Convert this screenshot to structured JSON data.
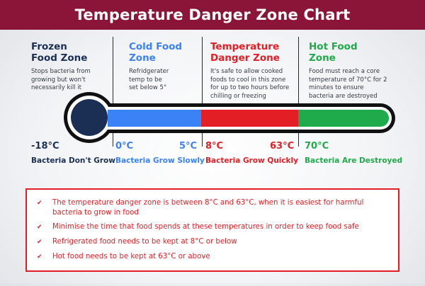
{
  "header": {
    "title": "Temperature Danger Zone Chart"
  },
  "colors": {
    "header_bg": "#8a1538",
    "frozen": "#1b2f55",
    "cold": "#3b82f6",
    "danger": "#e31e24",
    "hot": "#1faa4b",
    "outline": "#111111"
  },
  "zones": [
    {
      "title_line1": "Frozen",
      "title_line2": "Food Zone",
      "desc": [
        "Stops bacteria from",
        "growing but won't",
        "necessarily kill it"
      ],
      "temp_low": "-18°C",
      "temp_high": "",
      "label": "Bacteria Don't Grow"
    },
    {
      "title_line1": "Cold Food",
      "title_line2": "Zone",
      "desc": [
        "Refridgerater",
        "temp to be",
        "set below 5°"
      ],
      "temp_low": "0°C",
      "temp_high": "5°C",
      "label": "Bacteria Grow Slowly"
    },
    {
      "title_line1": "Temperature",
      "title_line2": "Danger Zone",
      "desc": [
        "It's safe to allow cooked",
        "foods to cool in this zone",
        "for up to two hours before",
        "chilling or freezing"
      ],
      "temp_low": "8°C",
      "temp_high": "63°C",
      "label": "Bacteria Grow Quickly"
    },
    {
      "title_line1": "Hot Food",
      "title_line2": "Zone",
      "desc": [
        "Food must reach a core",
        "temperature of 70°C for 2",
        "minutes to ensure",
        "bacteria are destroyed"
      ],
      "temp_low": "70°C",
      "temp_high": "",
      "label": "Bacteria Are Destroyed"
    }
  ],
  "info": [
    "The temperature danger zone is between 8°C and 63°C, when it is easiest for harmful bacteria to grow in food",
    "Minimise the time that food spends at these temperatures in order to keep food safe",
    "Refrigerated food needs to be kept at 8°C or below",
    "Hot food needs to be kept at 63°C or above"
  ],
  "icons": {
    "bullet": "check-icon"
  }
}
